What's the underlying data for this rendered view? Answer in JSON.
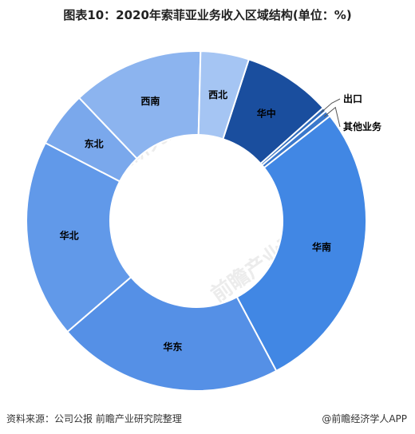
{
  "title": "图表10：2020年索菲亚业务收入区域结构(单位：%)",
  "chart_data": {
    "type": "pie",
    "donut": true,
    "slices": [
      {
        "label": "华中",
        "value": 8.4,
        "color": "#1A4E9E"
      },
      {
        "label": "出口",
        "value": 0.4,
        "color": "#2E6BBD"
      },
      {
        "label": "其他业务",
        "value": 0.6,
        "color": "#3A78CC"
      },
      {
        "label": "华南",
        "value": 27.8,
        "color": "#4187E4"
      },
      {
        "label": "华东",
        "value": 21.5,
        "color": "#5590E6"
      },
      {
        "label": "华北",
        "value": 18.9,
        "color": "#6199E9"
      },
      {
        "label": "东北",
        "value": 5.3,
        "color": "#7AA8EC"
      },
      {
        "label": "西南",
        "value": 12.5,
        "color": "#8CB4EF"
      },
      {
        "label": "西北",
        "value": 4.6,
        "color": "#A5C5F3"
      }
    ]
  },
  "footer": {
    "source": "资料来源：公司公报 前瞻产业研究院整理",
    "brand": "@前瞻经济学人APP"
  },
  "watermark": "前瞻产业研究院"
}
